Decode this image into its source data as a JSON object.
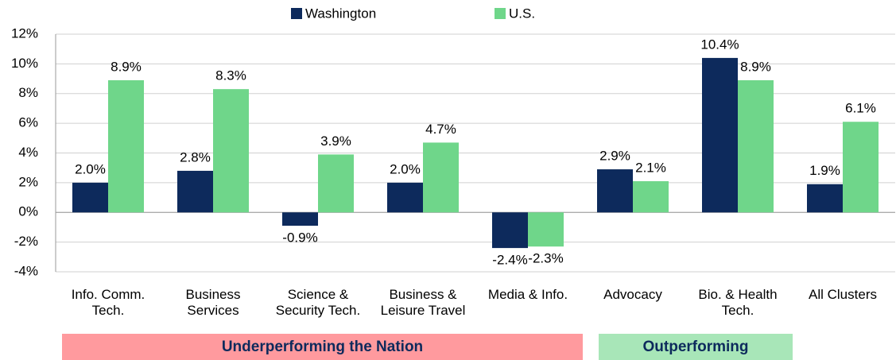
{
  "chart_data": {
    "type": "bar",
    "categories": [
      "Info. Comm.\nTech.",
      "Business\nServices",
      "Science &\nSecurity Tech.",
      "Business &\nLeisure Travel",
      "Media & Info.",
      "Advocacy",
      "Bio. & Health\nTech.",
      "All Clusters"
    ],
    "series": [
      {
        "name": "Washington",
        "color": "#0d2a5c",
        "values": [
          2.0,
          2.8,
          -0.9,
          2.0,
          -2.4,
          2.9,
          10.4,
          1.9
        ],
        "value_labels": [
          "2.0%",
          "2.8%",
          "-0.9%",
          "2.0%",
          "-2.4%",
          "2.9%",
          "10.4%",
          "1.9%"
        ]
      },
      {
        "name": "U.S.",
        "color": "#6fd68a",
        "values": [
          8.9,
          8.3,
          3.9,
          4.7,
          -2.3,
          2.1,
          8.9,
          6.1
        ],
        "value_labels": [
          "8.9%",
          "8.3%",
          "3.9%",
          "4.7%",
          "-2.3%",
          "2.1%",
          "8.9%",
          "6.1%"
        ]
      }
    ],
    "ylim": [
      -4,
      12
    ],
    "yticks": [
      {
        "value": -4,
        "label": "-4%"
      },
      {
        "value": -2,
        "label": "-2%"
      },
      {
        "value": 0,
        "label": "0%"
      },
      {
        "value": 2,
        "label": "2%"
      },
      {
        "value": 4,
        "label": "4%"
      },
      {
        "value": 6,
        "label": "6%"
      },
      {
        "value": 8,
        "label": "8%"
      },
      {
        "value": 10,
        "label": "10%"
      },
      {
        "value": 12,
        "label": "12%"
      }
    ],
    "grid": true,
    "legend": "top",
    "annotations": [
      "Underperforming the Nation",
      "Outperforming"
    ]
  }
}
